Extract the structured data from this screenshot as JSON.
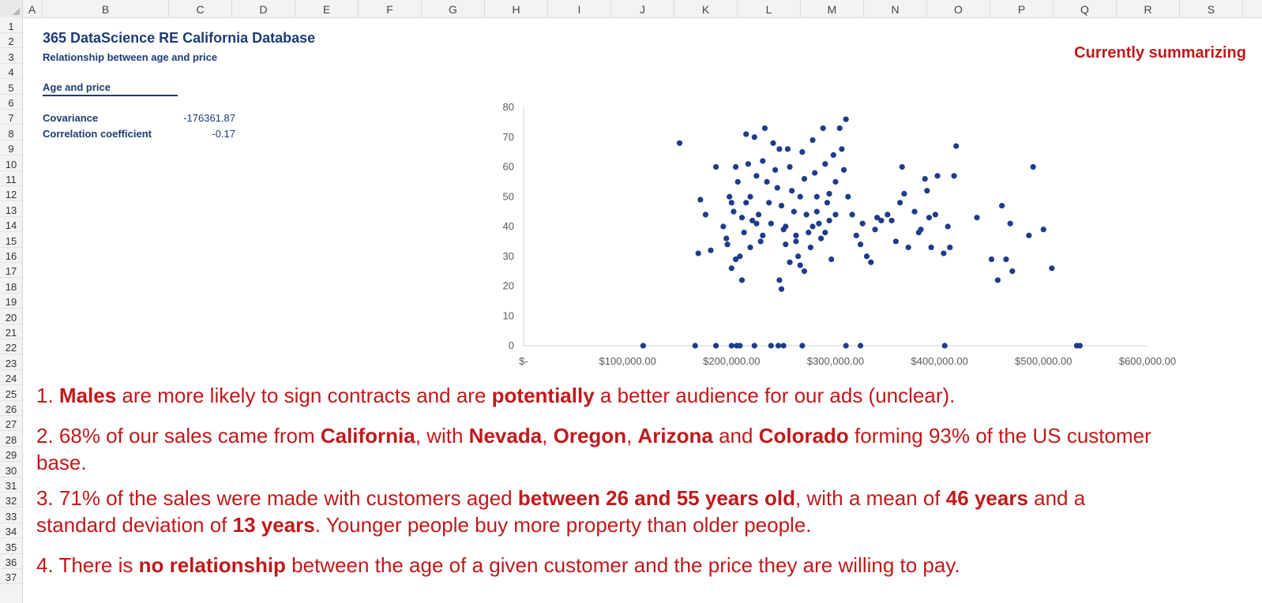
{
  "columns": [
    "A",
    "B",
    "C",
    "D",
    "E",
    "F",
    "G",
    "H",
    "I",
    "J",
    "K",
    "L",
    "M",
    "N",
    "O",
    "P",
    "Q",
    "R",
    "S"
  ],
  "rows": [
    "1",
    "2",
    "3",
    "4",
    "5",
    "6",
    "7",
    "8",
    "9",
    "10",
    "11",
    "12",
    "13",
    "14",
    "15",
    "16",
    "17",
    "18",
    "19",
    "20",
    "21",
    "22",
    "23",
    "24",
    "25",
    "26",
    "27",
    "28",
    "29",
    "30",
    "31",
    "32",
    "33",
    "34",
    "35",
    "36",
    "37"
  ],
  "sheet": {
    "title": "365 DataScience RE California Database",
    "subtitle": "Relationship between age and price",
    "status": "Currently summarizing",
    "section_title": "Age and price",
    "stats": [
      {
        "label": "Covariance",
        "value": "-176361.87"
      },
      {
        "label": "Correlation coefficient",
        "value": "-0.17"
      }
    ]
  },
  "notes": [
    [
      {
        "t": "1. "
      },
      {
        "t": "Males",
        "b": true
      },
      {
        "t": " are more likely to sign contracts and are "
      },
      {
        "t": "potentially",
        "b": true
      },
      {
        "t": " a better audience for our ads (unclear)."
      }
    ],
    [
      {
        "t": "2. 68% of our sales came from "
      },
      {
        "t": "California",
        "b": true
      },
      {
        "t": ", with "
      },
      {
        "t": "Nevada",
        "b": true
      },
      {
        "t": ", "
      },
      {
        "t": "Oregon",
        "b": true
      },
      {
        "t": ", "
      },
      {
        "t": "Arizona",
        "b": true
      },
      {
        "t": " and "
      },
      {
        "t": "Colorado",
        "b": true
      },
      {
        "t": " forming 93% of the US customer base."
      }
    ],
    [
      {
        "t": "3. 71% of the sales were made with customers aged "
      },
      {
        "t": "between 26 and 55 years old",
        "b": true
      },
      {
        "t": ", with a mean of "
      },
      {
        "t": "46 years",
        "b": true
      },
      {
        "t": " and a standard deviation of "
      },
      {
        "t": "13 years",
        "b": true
      },
      {
        "t": ". Younger people buy more property than older people."
      }
    ],
    [
      {
        "t": "4. There is "
      },
      {
        "t": "no relationship",
        "b": true
      },
      {
        "t": " between the age of a given customer and the price they are willing to pay."
      }
    ]
  ],
  "colors": {
    "navy": "#1f3b73",
    "red": "#c0191b",
    "point": "#1f3b8a"
  },
  "chart_data": {
    "type": "scatter",
    "title": "",
    "xlabel": "",
    "ylabel": "",
    "xlim": [
      0,
      600000
    ],
    "ylim": [
      0,
      80
    ],
    "x_ticks": [
      "$-",
      "$100,000.00",
      "$200,000.00",
      "$300,000.00",
      "$400,000.00",
      "$500,000.00",
      "$600,000.00"
    ],
    "y_ticks": [
      "0",
      "10",
      "20",
      "30",
      "40",
      "50",
      "60",
      "70",
      "80"
    ],
    "grid": false,
    "points": [
      [
        115000,
        0
      ],
      [
        165000,
        0
      ],
      [
        185000,
        0
      ],
      [
        200000,
        0
      ],
      [
        205000,
        0
      ],
      [
        208000,
        0
      ],
      [
        222000,
        0
      ],
      [
        238000,
        0
      ],
      [
        245000,
        0
      ],
      [
        250000,
        0
      ],
      [
        268000,
        0
      ],
      [
        310000,
        0
      ],
      [
        324000,
        0
      ],
      [
        405000,
        0
      ],
      [
        532000,
        0
      ],
      [
        535000,
        0
      ],
      [
        150000,
        68
      ],
      [
        185000,
        60
      ],
      [
        170000,
        49
      ],
      [
        175000,
        44
      ],
      [
        168000,
        31
      ],
      [
        180000,
        32
      ],
      [
        192000,
        40
      ],
      [
        195000,
        36
      ],
      [
        198000,
        50
      ],
      [
        200000,
        48
      ],
      [
        202000,
        45
      ],
      [
        204000,
        60
      ],
      [
        206000,
        55
      ],
      [
        208000,
        30
      ],
      [
        210000,
        43
      ],
      [
        212000,
        38
      ],
      [
        214000,
        71
      ],
      [
        216000,
        61
      ],
      [
        218000,
        50
      ],
      [
        220000,
        42
      ],
      [
        222000,
        70
      ],
      [
        224000,
        57
      ],
      [
        226000,
        44
      ],
      [
        228000,
        35
      ],
      [
        230000,
        62
      ],
      [
        232000,
        73
      ],
      [
        234000,
        55
      ],
      [
        236000,
        48
      ],
      [
        238000,
        41
      ],
      [
        240000,
        68
      ],
      [
        242000,
        59
      ],
      [
        244000,
        53
      ],
      [
        246000,
        66
      ],
      [
        248000,
        47
      ],
      [
        250000,
        39
      ],
      [
        252000,
        34
      ],
      [
        254000,
        66
      ],
      [
        256000,
        60
      ],
      [
        258000,
        52
      ],
      [
        260000,
        45
      ],
      [
        262000,
        37
      ],
      [
        264000,
        30
      ],
      [
        266000,
        27
      ],
      [
        268000,
        65
      ],
      [
        270000,
        56
      ],
      [
        272000,
        44
      ],
      [
        274000,
        38
      ],
      [
        276000,
        33
      ],
      [
        278000,
        69
      ],
      [
        280000,
        58
      ],
      [
        282000,
        50
      ],
      [
        284000,
        41
      ],
      [
        286000,
        36
      ],
      [
        288000,
        73
      ],
      [
        290000,
        61
      ],
      [
        292000,
        48
      ],
      [
        294000,
        42
      ],
      [
        296000,
        29
      ],
      [
        298000,
        64
      ],
      [
        300000,
        55
      ],
      [
        196000,
        34
      ],
      [
        200000,
        26
      ],
      [
        204000,
        29
      ],
      [
        210000,
        22
      ],
      [
        214000,
        48
      ],
      [
        218000,
        33
      ],
      [
        224000,
        41
      ],
      [
        230000,
        37
      ],
      [
        246000,
        22
      ],
      [
        248000,
        19
      ],
      [
        252000,
        40
      ],
      [
        256000,
        28
      ],
      [
        262000,
        35
      ],
      [
        266000,
        50
      ],
      [
        270000,
        25
      ],
      [
        278000,
        40
      ],
      [
        282000,
        45
      ],
      [
        290000,
        38
      ],
      [
        294000,
        51
      ],
      [
        300000,
        44
      ],
      [
        304000,
        73
      ],
      [
        306000,
        66
      ],
      [
        308000,
        59
      ],
      [
        310000,
        76
      ],
      [
        312000,
        50
      ],
      [
        316000,
        44
      ],
      [
        320000,
        37
      ],
      [
        324000,
        34
      ],
      [
        326000,
        41
      ],
      [
        330000,
        30
      ],
      [
        334000,
        28
      ],
      [
        338000,
        39
      ],
      [
        340000,
        43
      ],
      [
        344000,
        42
      ],
      [
        350000,
        44
      ],
      [
        354000,
        42
      ],
      [
        358000,
        35
      ],
      [
        362000,
        48
      ],
      [
        364000,
        60
      ],
      [
        366000,
        51
      ],
      [
        370000,
        33
      ],
      [
        376000,
        45
      ],
      [
        380000,
        38
      ],
      [
        382000,
        39
      ],
      [
        386000,
        56
      ],
      [
        388000,
        52
      ],
      [
        390000,
        43
      ],
      [
        392000,
        33
      ],
      [
        396000,
        44
      ],
      [
        398000,
        57
      ],
      [
        404000,
        31
      ],
      [
        408000,
        40
      ],
      [
        410000,
        33
      ],
      [
        414000,
        57
      ],
      [
        416000,
        67
      ],
      [
        436000,
        43
      ],
      [
        450000,
        29
      ],
      [
        456000,
        22
      ],
      [
        460000,
        47
      ],
      [
        464000,
        29
      ],
      [
        468000,
        41
      ],
      [
        470000,
        25
      ],
      [
        486000,
        37
      ],
      [
        490000,
        60
      ],
      [
        500000,
        39
      ],
      [
        508000,
        26
      ]
    ]
  }
}
